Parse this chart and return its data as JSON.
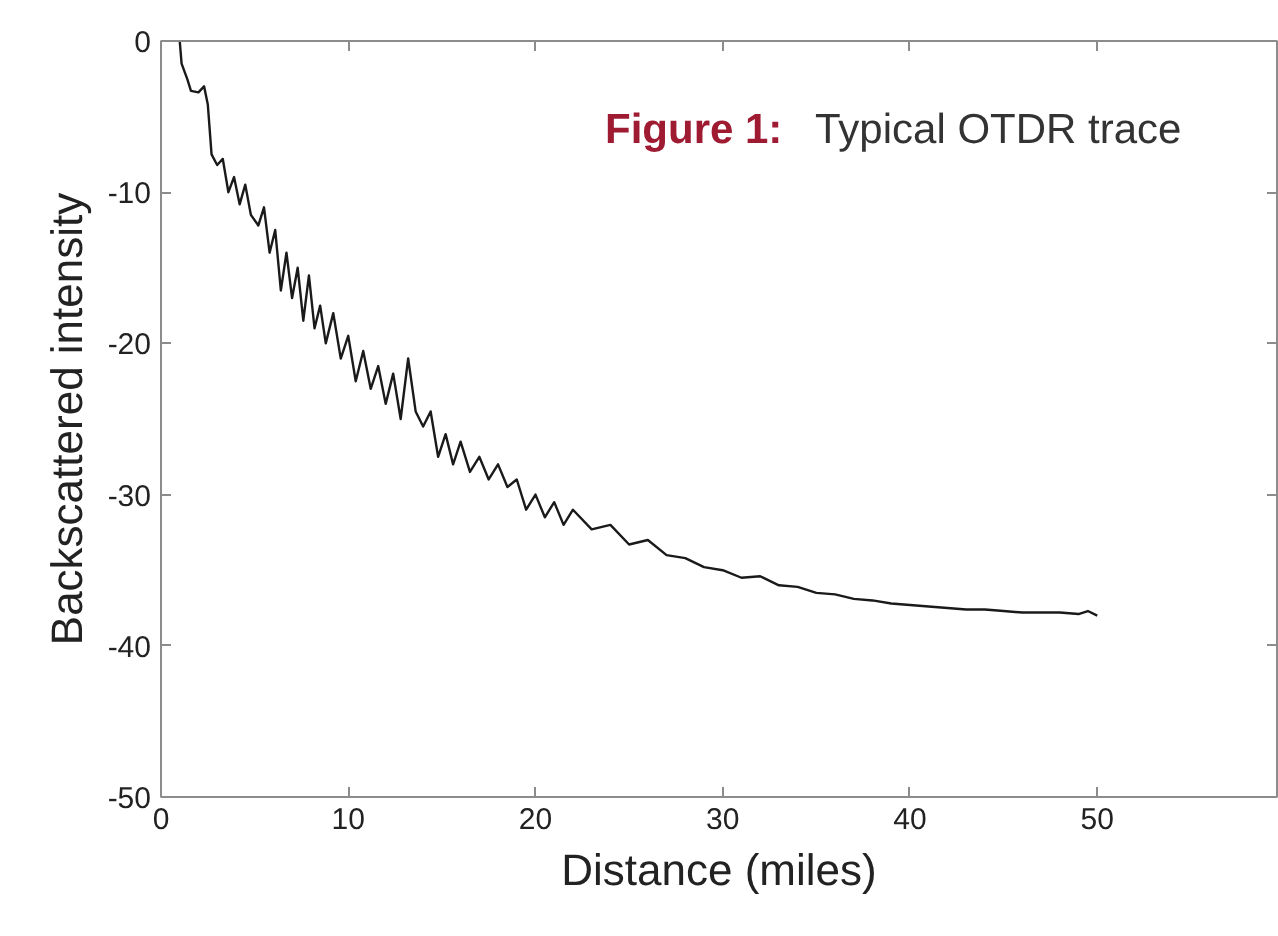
{
  "chart_data": {
    "type": "line",
    "title": "Figure 1: Typical OTDR trace",
    "xlabel": "Distance (miles)",
    "ylabel": "Backscattered intensity",
    "xlim": [
      0,
      59.6
    ],
    "ylim": [
      -50,
      0
    ],
    "xticks": [
      0,
      10,
      20,
      30,
      40,
      50
    ],
    "yticks": [
      0,
      -10,
      -20,
      -30,
      -40,
      -50
    ],
    "grid": false,
    "line_style": "solid",
    "series": [
      {
        "color": "#1a1a1a",
        "x": [
          1.0,
          1.1,
          1.4,
          1.6,
          2.0,
          2.3,
          2.5,
          2.7,
          3.0,
          3.3,
          3.6,
          3.9,
          4.2,
          4.5,
          4.8,
          5.2,
          5.5,
          5.8,
          6.1,
          6.4,
          6.7,
          7.0,
          7.3,
          7.6,
          7.9,
          8.2,
          8.5,
          8.8,
          9.2,
          9.6,
          10.0,
          10.4,
          10.8,
          11.2,
          11.6,
          12.0,
          12.4,
          12.8,
          13.2,
          13.6,
          14.0,
          14.4,
          14.8,
          15.2,
          15.6,
          16.0,
          16.5,
          17.0,
          17.5,
          18.0,
          18.5,
          19.0,
          19.5,
          20.0,
          20.5,
          21.0,
          21.5,
          22.0,
          23,
          24,
          25,
          26,
          27,
          28,
          29,
          30,
          31,
          32,
          33,
          34,
          35,
          36,
          37,
          38,
          39,
          40,
          41,
          42,
          43,
          44,
          45,
          46,
          47,
          48,
          49,
          49.5,
          50
        ],
        "values": [
          0,
          -1.5,
          -2.5,
          -3.3,
          -3.4,
          -3.0,
          -4.2,
          -7.5,
          -8.2,
          -7.8,
          -10.0,
          -9.0,
          -10.8,
          -9.5,
          -11.5,
          -12.2,
          -11.0,
          -14.0,
          -12.5,
          -16.5,
          -14.0,
          -17.0,
          -15.0,
          -18.5,
          -15.5,
          -19.0,
          -17.5,
          -20.0,
          -18.0,
          -21.0,
          -19.5,
          -22.5,
          -20.5,
          -23.0,
          -21.5,
          -24.0,
          -22.0,
          -25.0,
          -21.0,
          -24.5,
          -25.5,
          -24.5,
          -27.5,
          -26.0,
          -28.0,
          -26.5,
          -28.5,
          -27.5,
          -29.0,
          -28.0,
          -29.5,
          -29.0,
          -31.0,
          -30.0,
          -31.5,
          -30.5,
          -32.0,
          -31.0,
          -32.3,
          -32.0,
          -33.3,
          -33.0,
          -34.0,
          -34.2,
          -34.8,
          -35.0,
          -35.5,
          -35.4,
          -36.0,
          -36.1,
          -36.5,
          -36.6,
          -36.9,
          -37.0,
          -37.2,
          -37.3,
          -37.4,
          -37.5,
          -37.6,
          -37.6,
          -37.7,
          -37.8,
          -37.8,
          -37.8,
          -37.9,
          -37.7,
          -38.0
        ]
      }
    ]
  }
}
